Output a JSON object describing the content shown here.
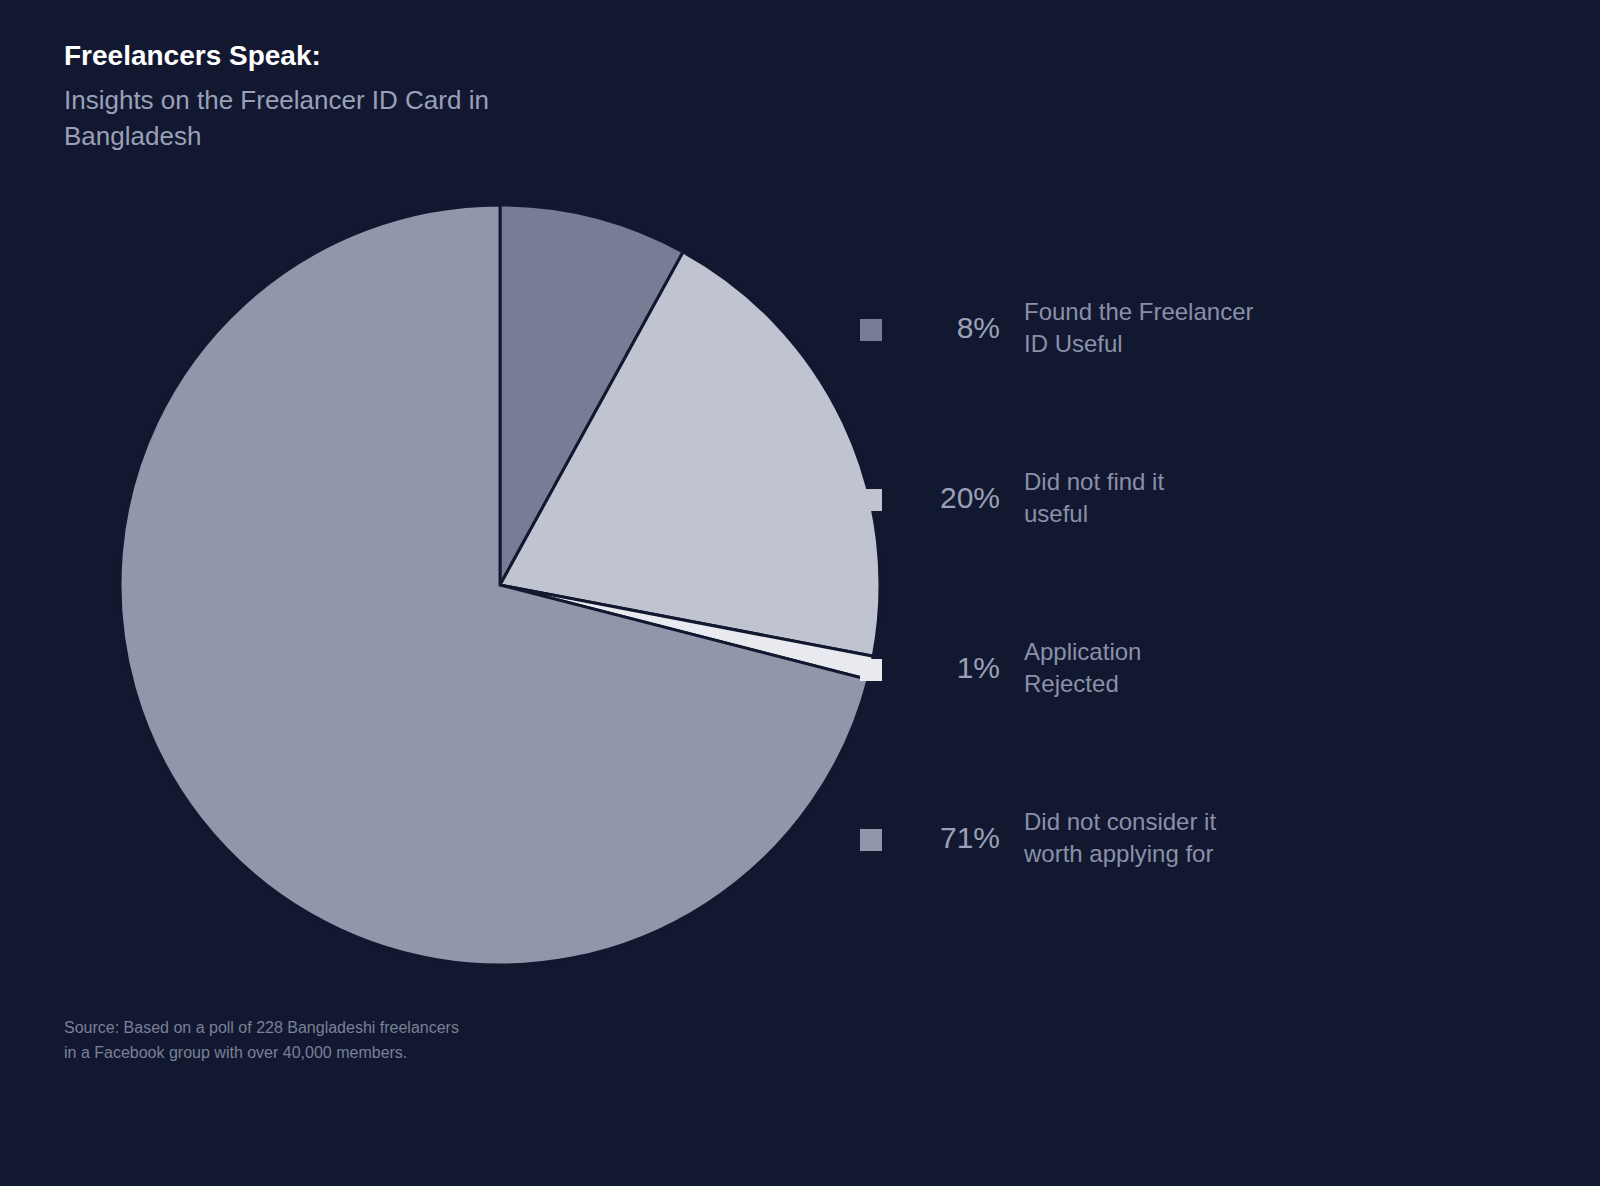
{
  "chart_data": {
    "type": "pie",
    "title": "Freelancers Speak:",
    "subtitle": "Insights on the Freelancer ID Card in\nBangladesh",
    "annotations": [
      "Source: Based on a poll of 228 Bangladeshi freelancers\nin a Facebook group with over 40,000 members."
    ],
    "categories": [
      "Found the Freelancer\nID Useful",
      "Did not find it\nuseful",
      "Application\nRejected",
      "Did not consider it\nworth applying for"
    ],
    "values": [
      8,
      20,
      1,
      71
    ],
    "value_labels": [
      "8%",
      "20%",
      "1%",
      "71%"
    ],
    "colors": [
      "#787d96",
      "#c0c4d0",
      "#e8eaf0",
      "#9196aa"
    ],
    "legend": "right"
  }
}
